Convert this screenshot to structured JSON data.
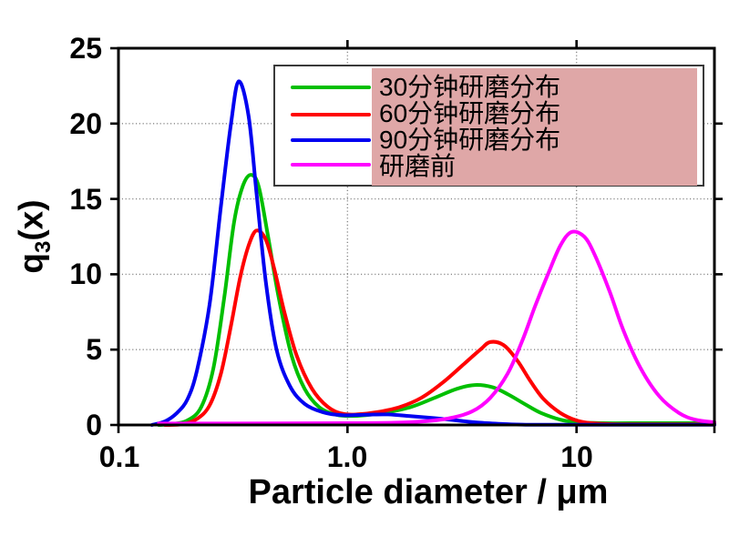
{
  "chart_data": {
    "type": "line",
    "title": "",
    "xlabel": "Particle diameter / μm",
    "ylabel": {
      "base": "q",
      "sub": "3",
      "rest": "(x)"
    },
    "xscale": "log",
    "xlim": [
      0.1,
      40
    ],
    "ylim": [
      0,
      25
    ],
    "x_ticks": [
      {
        "v": 0.1,
        "label": "0.1"
      },
      {
        "v": 1,
        "label": "1.0"
      },
      {
        "v": 10,
        "label": "10"
      }
    ],
    "y_ticks": [
      {
        "v": 0,
        "label": "0"
      },
      {
        "v": 5,
        "label": "5"
      },
      {
        "v": 10,
        "label": "10"
      },
      {
        "v": 15,
        "label": "15"
      },
      {
        "v": 20,
        "label": "20"
      },
      {
        "v": 25,
        "label": "25"
      }
    ],
    "grid": {
      "x": [
        1,
        10
      ],
      "y": [
        5,
        10,
        15,
        20
      ],
      "style": "dotted",
      "color": "#8a8a8a"
    },
    "frame_color": "#000000",
    "legend": {
      "position": "top-center",
      "background": "#ffffff",
      "border_color": "#3a3a3a",
      "highlight_color": "#dfa7a7"
    },
    "series": [
      {
        "name": "30分钟研磨分布",
        "color": "#00bf00",
        "peaks": [
          {
            "x": 0.38,
            "y": 16.6
          },
          {
            "x": 3.6,
            "y": 2.65
          }
        ],
        "points": [
          [
            0.15,
            0
          ],
          [
            0.17,
            0.05
          ],
          [
            0.2,
            0.3
          ],
          [
            0.23,
            1.2
          ],
          [
            0.26,
            3.8
          ],
          [
            0.29,
            8.5
          ],
          [
            0.32,
            13.5
          ],
          [
            0.35,
            15.9
          ],
          [
            0.38,
            16.6
          ],
          [
            0.41,
            15.8
          ],
          [
            0.45,
            12.5
          ],
          [
            0.5,
            8.5
          ],
          [
            0.57,
            4.6
          ],
          [
            0.65,
            2.4
          ],
          [
            0.75,
            1.2
          ],
          [
            0.88,
            0.7
          ],
          [
            1.0,
            0.6
          ],
          [
            1.2,
            0.65
          ],
          [
            1.5,
            0.85
          ],
          [
            1.9,
            1.2
          ],
          [
            2.4,
            1.8
          ],
          [
            3.0,
            2.4
          ],
          [
            3.6,
            2.65
          ],
          [
            4.3,
            2.5
          ],
          [
            5.0,
            2.05
          ],
          [
            6.0,
            1.35
          ],
          [
            7.0,
            0.8
          ],
          [
            8.5,
            0.35
          ],
          [
            10,
            0.18
          ],
          [
            13,
            0.12
          ],
          [
            20,
            0.12
          ],
          [
            30,
            0.12
          ],
          [
            40,
            0.12
          ]
        ]
      },
      {
        "name": "60分钟研磨分布",
        "color": "#ff0000",
        "peaks": [
          {
            "x": 0.4,
            "y": 12.9
          },
          {
            "x": 4.2,
            "y": 5.5
          }
        ],
        "points": [
          [
            0.16,
            0
          ],
          [
            0.19,
            0.05
          ],
          [
            0.22,
            0.4
          ],
          [
            0.25,
            1.3
          ],
          [
            0.28,
            3.4
          ],
          [
            0.31,
            6.6
          ],
          [
            0.34,
            9.8
          ],
          [
            0.37,
            11.9
          ],
          [
            0.4,
            12.9
          ],
          [
            0.44,
            12.3
          ],
          [
            0.48,
            10.3
          ],
          [
            0.53,
            7.5
          ],
          [
            0.6,
            4.6
          ],
          [
            0.7,
            2.4
          ],
          [
            0.82,
            1.2
          ],
          [
            0.95,
            0.75
          ],
          [
            1.1,
            0.7
          ],
          [
            1.35,
            0.85
          ],
          [
            1.7,
            1.2
          ],
          [
            2.1,
            1.8
          ],
          [
            2.6,
            2.8
          ],
          [
            3.2,
            4.0
          ],
          [
            3.8,
            5.0
          ],
          [
            4.2,
            5.5
          ],
          [
            4.8,
            5.3
          ],
          [
            5.5,
            4.3
          ],
          [
            6.3,
            2.9
          ],
          [
            7.2,
            1.7
          ],
          [
            8.5,
            0.8
          ],
          [
            10,
            0.3
          ],
          [
            12,
            0.1
          ],
          [
            15,
            0.05
          ],
          [
            20,
            0.05
          ],
          [
            30,
            0.05
          ],
          [
            40,
            0.05
          ]
        ]
      },
      {
        "name": "90分钟研磨分布",
        "color": "#0000f0",
        "peaks": [
          {
            "x": 0.335,
            "y": 22.8
          }
        ],
        "points": [
          [
            0.14,
            0
          ],
          [
            0.16,
            0.25
          ],
          [
            0.18,
            0.8
          ],
          [
            0.2,
            1.7
          ],
          [
            0.22,
            3.6
          ],
          [
            0.25,
            8.0
          ],
          [
            0.28,
            14.5
          ],
          [
            0.31,
            20.0
          ],
          [
            0.335,
            22.8
          ],
          [
            0.37,
            20.5
          ],
          [
            0.4,
            15.5
          ],
          [
            0.44,
            9.5
          ],
          [
            0.49,
            5.0
          ],
          [
            0.56,
            2.6
          ],
          [
            0.65,
            1.4
          ],
          [
            0.78,
            0.85
          ],
          [
            0.95,
            0.65
          ],
          [
            1.2,
            0.68
          ],
          [
            1.5,
            0.7
          ],
          [
            1.9,
            0.58
          ],
          [
            2.4,
            0.45
          ],
          [
            3.0,
            0.3
          ],
          [
            3.8,
            0.15
          ],
          [
            4.8,
            0.06
          ],
          [
            6.0,
            0.02
          ],
          [
            8,
            0.01
          ],
          [
            15,
            0.01
          ],
          [
            40,
            0.01
          ]
        ]
      },
      {
        "name": "研磨前",
        "color": "#ff00ff",
        "peaks": [
          {
            "x": 9.5,
            "y": 12.8
          }
        ],
        "points": [
          [
            0.15,
            0.1
          ],
          [
            0.5,
            0.1
          ],
          [
            1.0,
            0.12
          ],
          [
            1.6,
            0.15
          ],
          [
            2.2,
            0.25
          ],
          [
            2.8,
            0.45
          ],
          [
            3.5,
            0.9
          ],
          [
            4.2,
            1.8
          ],
          [
            5.0,
            3.4
          ],
          [
            5.8,
            5.6
          ],
          [
            6.6,
            7.9
          ],
          [
            7.5,
            10.0
          ],
          [
            8.5,
            11.9
          ],
          [
            9.5,
            12.8
          ],
          [
            10.8,
            12.5
          ],
          [
            12,
            11.3
          ],
          [
            14,
            8.8
          ],
          [
            16,
            6.3
          ],
          [
            19,
            3.8
          ],
          [
            23,
            1.9
          ],
          [
            28,
            0.8
          ],
          [
            33,
            0.35
          ],
          [
            40,
            0.18
          ]
        ]
      }
    ]
  }
}
